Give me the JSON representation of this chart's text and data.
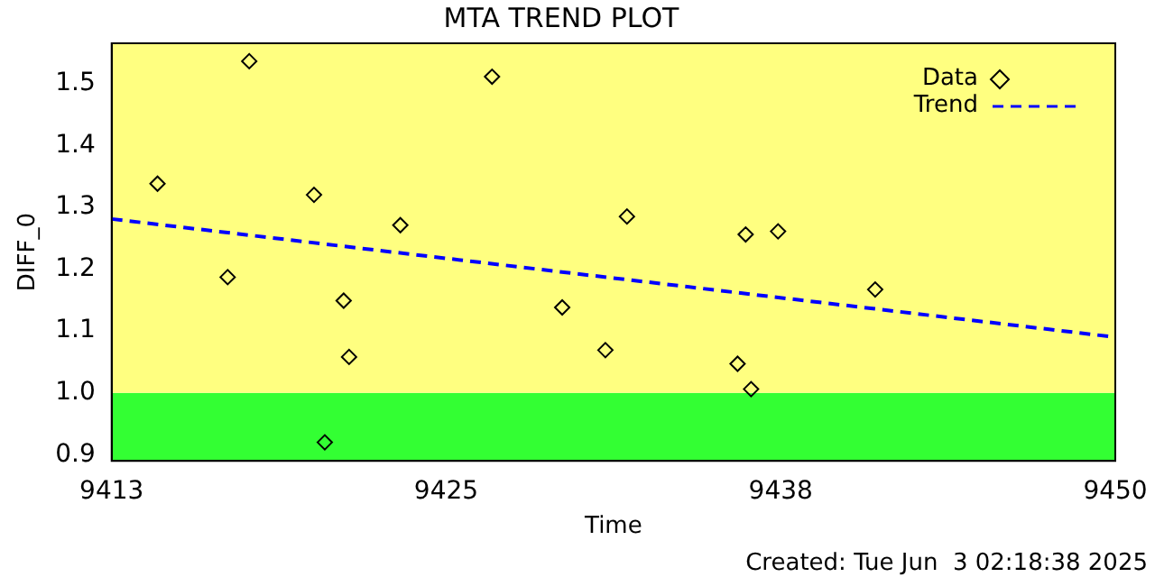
{
  "chart_data": {
    "type": "scatter",
    "title": "MTA TREND PLOT",
    "xlabel": "Time",
    "ylabel": "DIFF_0",
    "xlim": [
      9413,
      9450.2
    ],
    "xticks": [
      9413,
      {
        "value": 9425.4,
        "label": "9425"
      },
      {
        "value": 9437.8,
        "label": "9438"
      },
      {
        "value": 9450.2,
        "label": "9450"
      }
    ],
    "ylim": [
      0.89,
      1.565
    ],
    "yticks": [
      0.9,
      {
        "value": 1.0,
        "label": "1.0"
      },
      1.1,
      1.2,
      1.3,
      1.4,
      1.5
    ],
    "grid": false,
    "legend": "top right",
    "marker": "diamond",
    "bands": [
      {
        "axis": "y",
        "from": 0.89,
        "to": 1.0,
        "color": "#33ff33"
      },
      {
        "axis": "y",
        "from": 1.0,
        "to": 1.565,
        "color": "#ffff80"
      }
    ],
    "series": [
      {
        "name": "Data",
        "color": "#000000",
        "x": [
          9414.7,
          9417.3,
          9418.1,
          9420.5,
          9420.9,
          9421.6,
          9421.8,
          9423.7,
          9427.1,
          9429.7,
          9431.3,
          9432.1,
          9436.2,
          9436.5,
          9436.7,
          9437.7,
          9441.3
        ],
        "values": [
          1.338,
          1.187,
          1.536,
          1.32,
          0.92,
          1.149,
          1.058,
          1.271,
          1.511,
          1.138,
          1.069,
          1.285,
          1.047,
          1.256,
          1.006,
          1.261,
          1.167
        ]
      },
      {
        "name": "Trend",
        "type": "line",
        "color": "#0000ff",
        "marker": "none",
        "line_style": "dashed",
        "x": [
          9413,
          9450.2
        ],
        "values": [
          1.281,
          1.09
        ]
      }
    ],
    "annotations": [
      "Created: Tue Jun  3 02:18:38 2025"
    ]
  }
}
